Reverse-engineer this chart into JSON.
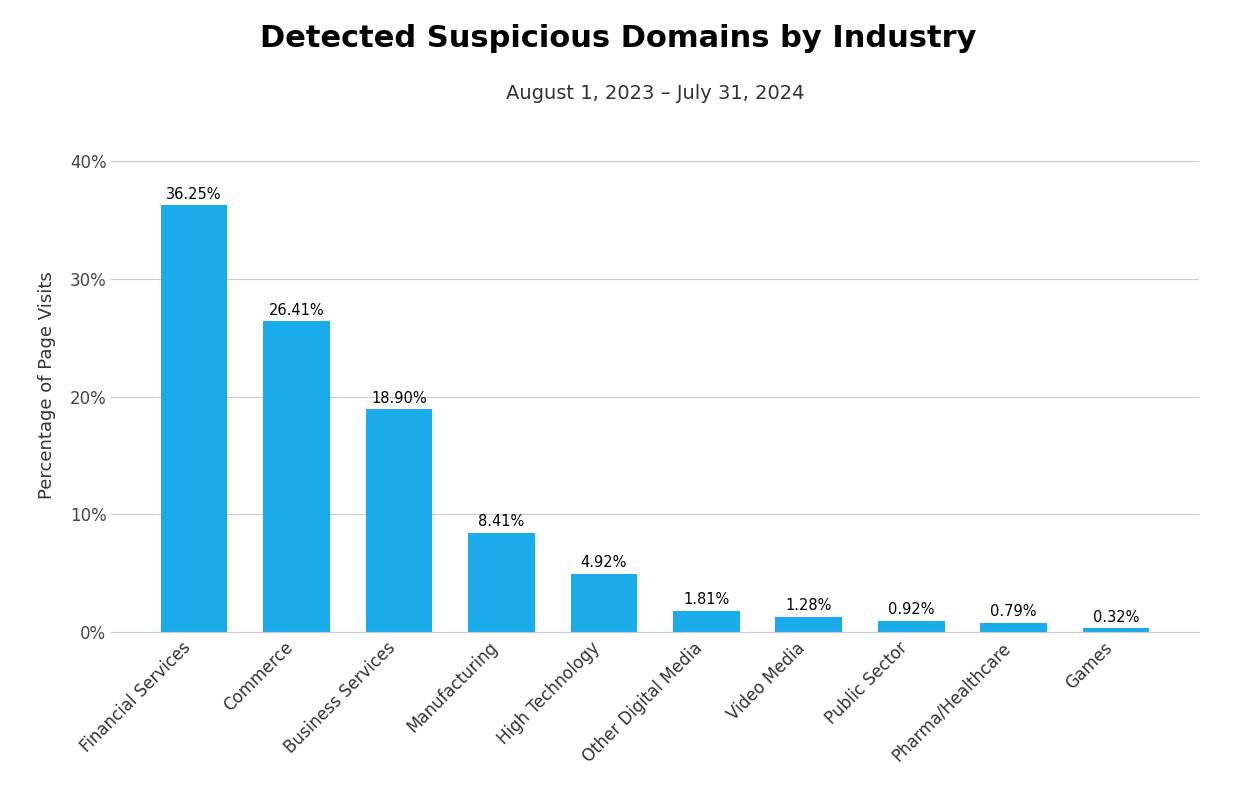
{
  "title": "Detected Suspicious Domains by Industry",
  "subtitle": "August 1, 2023 – July 31, 2024",
  "categories": [
    "Financial Services",
    "Commerce",
    "Business Services",
    "Manufacturing",
    "High Technology",
    "Other Digital Media",
    "Video Media",
    "Public Sector",
    "Pharma/Healthcare",
    "Games"
  ],
  "values": [
    36.25,
    26.41,
    18.9,
    8.41,
    4.92,
    1.81,
    1.28,
    0.92,
    0.79,
    0.32
  ],
  "bar_color": "#1AABEB",
  "ylabel": "Percentage of Page Visits",
  "ylim": [
    0,
    42
  ],
  "yticks": [
    0,
    10,
    20,
    30,
    40
  ],
  "ytick_labels": [
    "0%",
    "10%",
    "20%",
    "30%",
    "40%"
  ],
  "title_fontsize": 22,
  "subtitle_fontsize": 14,
  "ylabel_fontsize": 13,
  "label_fontsize": 10.5,
  "tick_fontsize": 12,
  "background_color": "#ffffff",
  "grid_color": "#cccccc"
}
